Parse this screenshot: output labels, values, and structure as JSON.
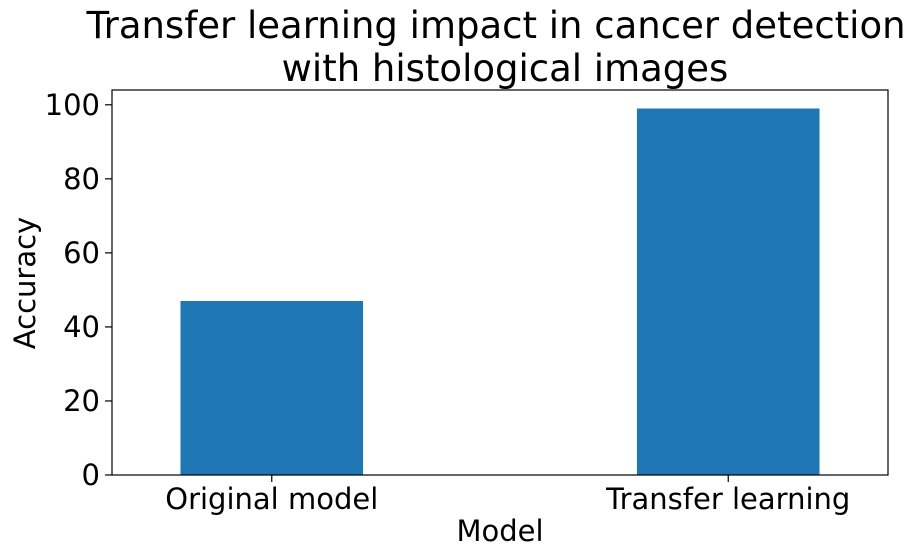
{
  "chart_data": {
    "type": "bar",
    "title": "Transfer learning impact in cancer detection with histological images",
    "title_lines": [
      "Transfer learning impact in cancer detection",
      "with histological images"
    ],
    "xlabel": "Model",
    "ylabel": "Accuracy",
    "categories": [
      "Original model",
      "Transfer learning"
    ],
    "values": [
      47,
      99
    ],
    "ylim": [
      0,
      104
    ],
    "yticks": [
      "0",
      "20",
      "40",
      "60",
      "80",
      "100"
    ],
    "grid": false,
    "bar_color": "#1f77b4"
  }
}
